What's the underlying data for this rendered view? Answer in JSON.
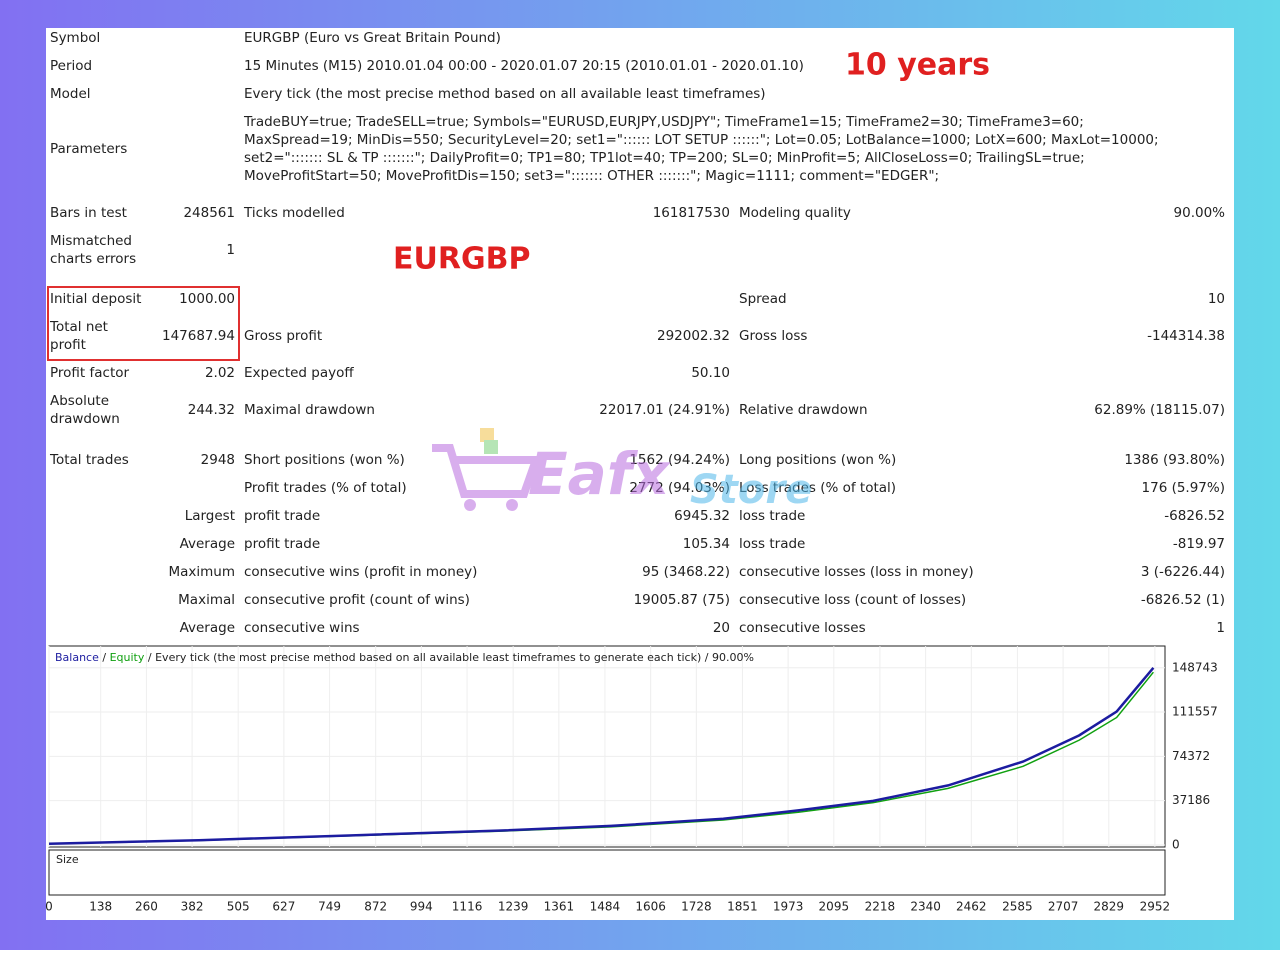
{
  "report": {
    "rows": [
      [
        "Symbol",
        null,
        "EURGBP (Euro vs Great Britain Pound)",
        null,
        null,
        null
      ],
      [
        "Period",
        null,
        "15 Minutes (M15) 2010.01.04 00:00 - 2020.01.07 20:15 (2010.01.01 - 2020.01.10)",
        null,
        null,
        null
      ],
      [
        "Model",
        null,
        "Every tick (the most precise method based on all available least timeframes)",
        null,
        null,
        null
      ],
      [
        "Parameters",
        null,
        [
          "TradeBUY=true; TradeSELL=true; Symbols=\"EURUSD,EURJPY,USDJPY\"; TimeFrame1=15; TimeFrame2=30; TimeFrame3=60;",
          "MaxSpread=19; MinDis=550; SecurityLevel=20; set1=\":::::: LOT SETUP ::::::\"; Lot=0.05; LotBalance=1000; LotX=600; MaxLot=10000;",
          "set2=\"::::::: SL & TP :::::::\"; DailyProfit=0; TP1=80; TP1lot=40; TP=200; SL=0; MinProfit=5; AllCloseLoss=0; TrailingSL=true;",
          "MoveProfitStart=50; MoveProfitDis=150; set3=\"::::::: OTHER :::::::\"; Magic=1111; comment=\"EDGER\";"
        ],
        null,
        null,
        null
      ],
      [
        "Bars in test",
        "248561",
        "Ticks modelled",
        "161817530",
        "Modeling quality",
        "90.00%"
      ],
      [
        [
          "Mismatched",
          "charts errors"
        ],
        "1",
        null,
        null,
        null,
        null
      ],
      [
        "Initial deposit",
        "1000.00",
        null,
        null,
        "Spread",
        "10"
      ],
      [
        [
          "Total net",
          "profit"
        ],
        "147687.94",
        "Gross profit",
        "292002.32",
        "Gross loss",
        "-144314.38"
      ],
      [
        "Profit factor",
        "2.02",
        "Expected payoff",
        "50.10",
        null,
        null
      ],
      [
        [
          "Absolute",
          "drawdown"
        ],
        "244.32",
        "Maximal drawdown",
        "22017.01 (24.91%)",
        "Relative drawdown",
        "62.89% (18115.07)"
      ],
      [
        "Total trades",
        "2948",
        "Short positions (won %)",
        "1562 (94.24%)",
        "Long positions (won %)",
        "1386 (93.80%)"
      ],
      [
        null,
        null,
        "Profit trades (% of total)",
        "2772 (94.03%)",
        "Loss trades (% of total)",
        "176 (5.97%)"
      ],
      [
        null,
        "Largest",
        "profit trade",
        "6945.32",
        "loss trade",
        "-6826.52"
      ],
      [
        null,
        "Average",
        "profit trade",
        "105.34",
        "loss trade",
        "-819.97"
      ],
      [
        null,
        "Maximum",
        "consecutive wins (profit in money)",
        "95 (3468.22)",
        "consecutive losses (loss in money)",
        "3 (-6226.44)"
      ],
      [
        null,
        "Maximal",
        "consecutive profit (count of wins)",
        "19005.87 (75)",
        "consecutive loss (count of losses)",
        "-6826.52 (1)"
      ],
      [
        null,
        "Average",
        "consecutive wins",
        "20",
        "consecutive losses",
        "1"
      ]
    ]
  },
  "annotations": {
    "period_note": "10 years",
    "symbol_note": "EURGBP"
  },
  "watermark": [
    "Eafx",
    "Store"
  ],
  "chart_data": {
    "type": "line",
    "legend_separator": "/",
    "legend_note": "Every tick (the most precise method based on all available least timeframes to generate each tick) / 90.00%",
    "size_label": "Size",
    "x": [
      0,
      400,
      800,
      1200,
      1500,
      1800,
      2000,
      2200,
      2400,
      2600,
      2750,
      2850,
      2948
    ],
    "series": [
      {
        "name": "Balance",
        "color": "#1c1ca0",
        "values": [
          1000,
          4000,
          8000,
          12000,
          16000,
          22000,
          29000,
          37000,
          50000,
          70000,
          92000,
          112000,
          148688
        ]
      },
      {
        "name": "Equity",
        "color": "#10a010",
        "values": [
          1000,
          3800,
          7600,
          11500,
          15200,
          21000,
          27500,
          35500,
          47500,
          66000,
          88000,
          107000,
          145000
        ]
      }
    ],
    "xlim": [
      0,
      2979
    ],
    "xticks": [
      0,
      138,
      260,
      382,
      505,
      627,
      749,
      872,
      994,
      1116,
      1239,
      1361,
      1484,
      1606,
      1728,
      1851,
      1973,
      2095,
      2218,
      2340,
      2462,
      2585,
      2707,
      2829,
      2952
    ],
    "ylim": [
      -1700,
      167000
    ],
    "yticks": [
      0,
      37186,
      74372,
      111557,
      148743
    ],
    "grid": true
  }
}
